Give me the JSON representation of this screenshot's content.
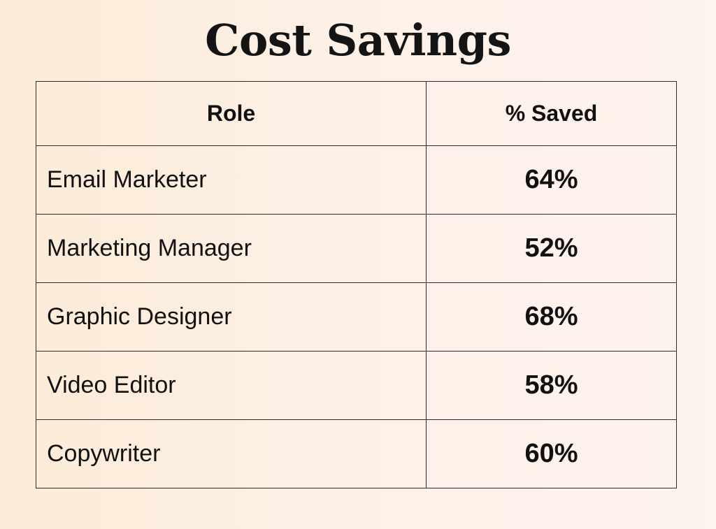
{
  "title": "Cost Savings",
  "chart_data": {
    "type": "table",
    "columns": [
      "Role",
      "% Saved"
    ],
    "rows": [
      {
        "role": "Email Marketer",
        "saved": "64%"
      },
      {
        "role": "Marketing Manager",
        "saved": "52%"
      },
      {
        "role": "Graphic Designer",
        "saved": "68%"
      },
      {
        "role": "Video Editor",
        "saved": "58%"
      },
      {
        "role": "Copywriter",
        "saved": "60%"
      }
    ],
    "values": [
      64,
      52,
      68,
      58,
      60
    ],
    "unit": "%"
  }
}
